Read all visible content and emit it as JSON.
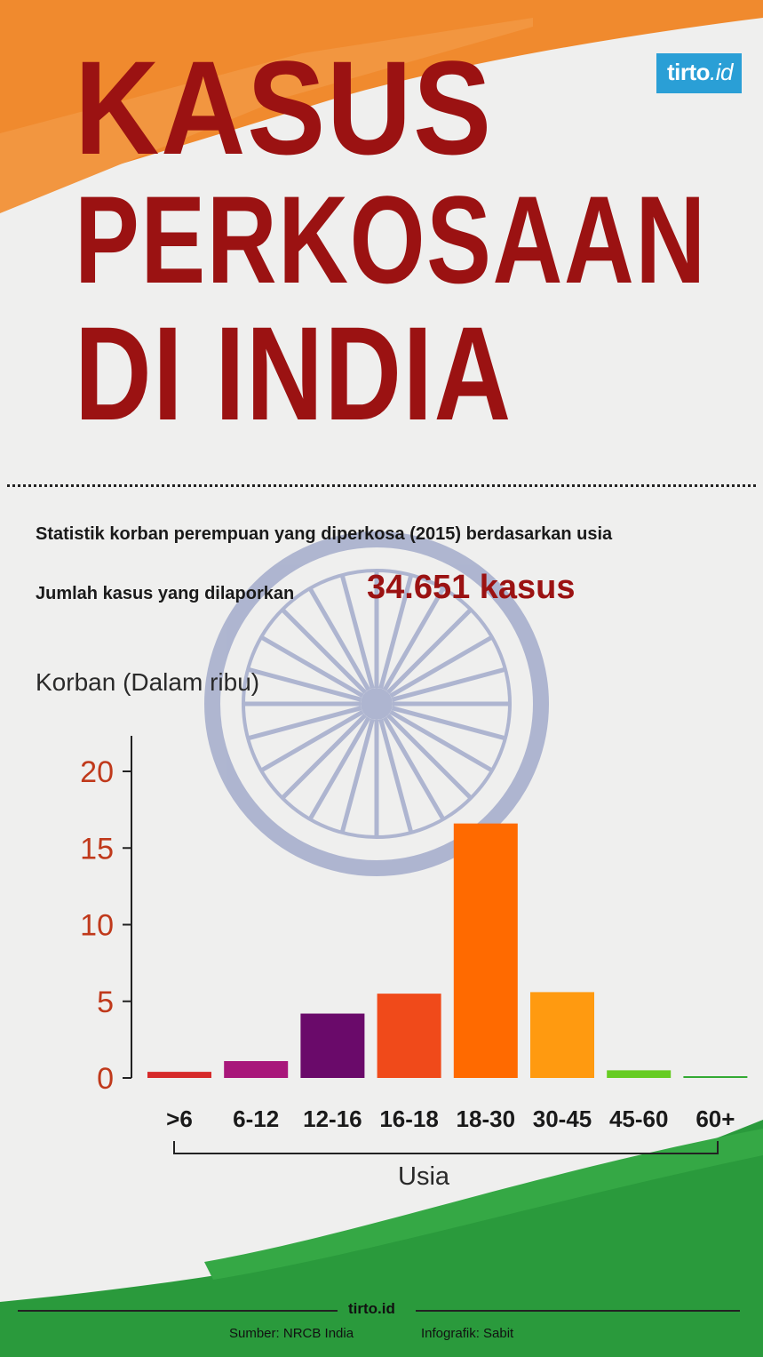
{
  "brand": {
    "name": "tirto",
    "suffix": ".id"
  },
  "title": {
    "line1": "KASUS",
    "line2": "PERKOSAAN",
    "line3": "DI INDIA"
  },
  "subtitle": "Statistik korban perempuan yang diperkosa (2015) berdasarkan usia",
  "total": {
    "label": "Jumlah kasus yang dilaporkan",
    "value": "34.651 kasus"
  },
  "colors": {
    "title": "#9b1212",
    "saffron": "#f08a2e",
    "green": "#2a9a3c",
    "chakra": "#5a6aa8",
    "brand_blue": "#2a9fd6",
    "tick_label": "#c0391b"
  },
  "chart_data": {
    "type": "bar",
    "ylabel": "Korban (Dalam ribu)",
    "xlabel": "Usia",
    "categories": [
      ">6",
      "6-12",
      "12-16",
      "16-18",
      "18-30",
      "30-45",
      "45-60",
      "60+"
    ],
    "values": [
      0.4,
      1.1,
      4.2,
      5.5,
      16.6,
      5.6,
      0.5,
      0.1
    ],
    "bar_colors": [
      "#d62a2a",
      "#a8177a",
      "#6a0a6a",
      "#f04a1a",
      "#ff6a00",
      "#ff9a10",
      "#66cc22",
      "#33aa33"
    ],
    "yticks": [
      0,
      5,
      10,
      15,
      20
    ],
    "ylim": [
      0,
      20
    ],
    "grid": false
  },
  "footer": {
    "brand": "tirto.id",
    "source": "Sumber: NRCB India",
    "credit": "Infografik: Sabit"
  }
}
